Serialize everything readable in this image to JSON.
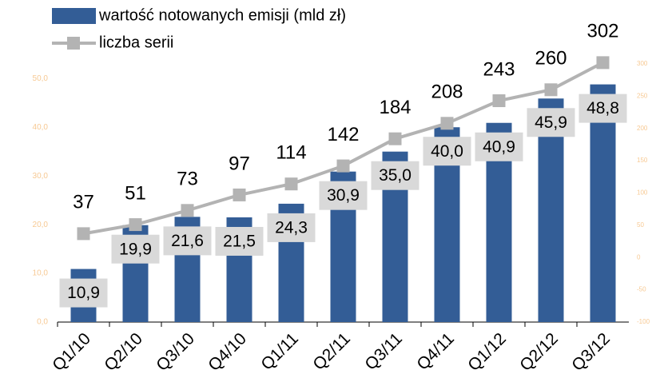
{
  "chart_data": {
    "type": "bar",
    "categories": [
      "Q1/10",
      "Q2/10",
      "Q3/10",
      "Q4/10",
      "Q1/11",
      "Q2/11",
      "Q3/11",
      "Q4/11",
      "Q1/12",
      "Q2/12",
      "Q3/12"
    ],
    "series": [
      {
        "name": "wartość notowanych emisji (mld zł)",
        "type": "bar",
        "color": "#335d96",
        "values": [
          10.9,
          19.9,
          21.6,
          21.5,
          24.3,
          30.9,
          35.0,
          40.0,
          40.9,
          45.9,
          48.8
        ],
        "value_labels": [
          "10,9",
          "19,9",
          "21,6",
          "21,5",
          "24,3",
          "30,9",
          "35,0",
          "40,0",
          "40,9",
          "45,9",
          "48,8"
        ]
      },
      {
        "name": "liczba serii",
        "type": "line",
        "axis": "y2",
        "color": "#b3b3b3",
        "values": [
          37,
          51,
          73,
          97,
          114,
          142,
          184,
          208,
          243,
          260,
          302
        ]
      }
    ],
    "ylim": [
      0,
      53
    ],
    "yticks": [
      {
        "value": 0,
        "label": "0,0"
      },
      {
        "value": 10,
        "label": "10,0"
      },
      {
        "value": 20,
        "label": "20,0"
      },
      {
        "value": 30,
        "label": "30,0"
      },
      {
        "value": 40,
        "label": "40,0"
      },
      {
        "value": 50,
        "label": "50,0"
      }
    ],
    "y2lim": [
      -100,
      300
    ],
    "y2ticks": [
      -100,
      -50,
      0,
      50,
      100,
      150,
      200,
      250,
      300
    ],
    "grid": false
  }
}
